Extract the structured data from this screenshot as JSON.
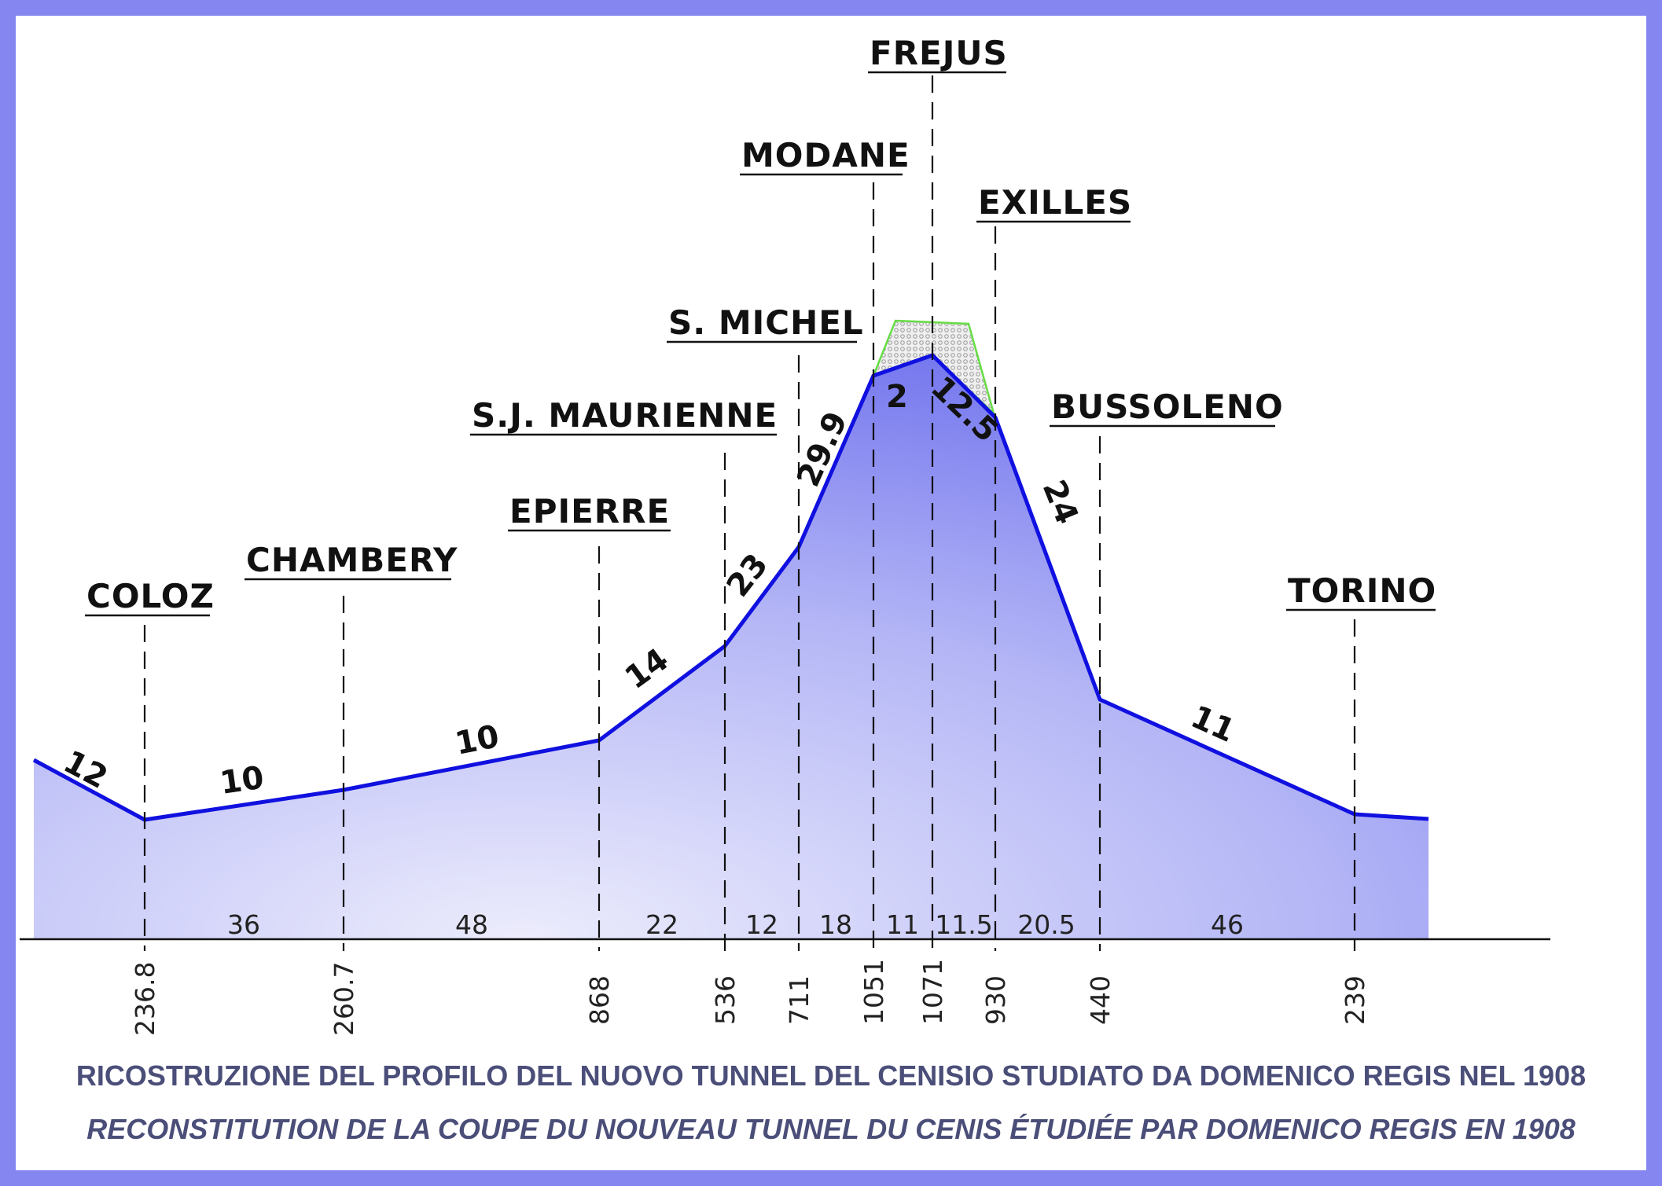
{
  "profile": {
    "colors": {
      "frame": "#8586f0",
      "profile_line": "#1010e0",
      "fill_top": "#7a7cf0",
      "fill_bottom": "#e8e8fb",
      "summit_hatch_outline": "#66dd44",
      "guide_lines": "#111111"
    },
    "stations": [
      {
        "key": "coloz",
        "name": "COLOZ",
        "altitude": "236.8"
      },
      {
        "key": "chambery",
        "name": "CHAMBERY",
        "altitude": "260.7"
      },
      {
        "key": "epierre",
        "name": "EPIERRE",
        "altitude": "868"
      },
      {
        "key": "sj_maurienne",
        "name": "S.J. MAURIENNE",
        "altitude": "536"
      },
      {
        "key": "s_michel",
        "name": "S. MICHEL",
        "altitude": "711"
      },
      {
        "key": "modane",
        "name": "MODANE",
        "altitude": "1051"
      },
      {
        "key": "frejus",
        "name": "FREJUS",
        "altitude": "1071"
      },
      {
        "key": "exilles",
        "name": "EXILLES",
        "altitude": "930"
      },
      {
        "key": "bussoleno",
        "name": "BUSSOLENO",
        "altitude": "440"
      },
      {
        "key": "torino",
        "name": "TORINO",
        "altitude": "239"
      }
    ],
    "gradients": [
      "12",
      "10",
      "10",
      "14",
      "23",
      "29.9",
      "2",
      "12.5",
      "24",
      "11"
    ],
    "distances": [
      "36",
      "48",
      "22",
      "12",
      "18",
      "11",
      "11.5",
      "20.5",
      "46"
    ]
  },
  "caption": {
    "italian": "RICOSTRUZIONE DEL PROFILO DEL NUOVO TUNNEL DEL CENISIO STUDIATO DA DOMENICO REGIS NEL 1908",
    "french": "RECONSTITUTION DE LA COUPE DU NOUVEAU TUNNEL DU CENIS ÉTUDIÉE PAR DOMENICO REGIS EN 1908"
  }
}
